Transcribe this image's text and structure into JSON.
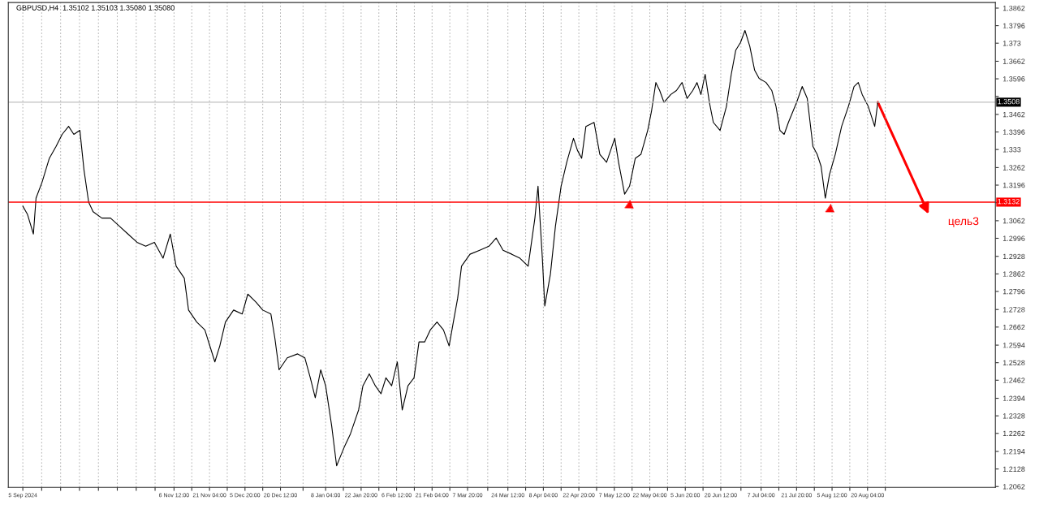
{
  "chart_data": {
    "type": "line",
    "title": "GBPUSD,H4  1.35102 1.35103 1.35080 1.35080",
    "x": [
      "2024-09-05T00:00",
      "2024-09-06T21:00",
      "2024-09-09T09:00",
      "2024-09-10T11:00",
      "2024-09-12T23:00",
      "2024-09-15T23:00",
      "2024-09-18T18:00",
      "2024-09-21T06:00",
      "2024-09-23T22:00",
      "2024-09-26T02:00",
      "2024-09-28T14:00",
      "2024-09-30T07:00",
      "2024-10-02T05:00",
      "2024-10-04T01:00",
      "2024-10-07T16:00",
      "2024-10-11T06:00",
      "2024-10-14T20:00",
      "2024-10-18T11:00",
      "2024-10-22T05:00",
      "2024-10-25T19:00",
      "2024-10-29T09:00",
      "2024-11-01T23:00",
      "2024-11-04T23:00",
      "2024-11-07T09:00",
      "2024-11-10T18:00",
      "2024-11-12T12:00",
      "2024-11-15T21:00",
      "2024-11-19T06:00",
      "2024-11-23T09:00",
      "2024-11-25T10:00",
      "2024-11-27T18:00",
      "2024-12-01T03:00",
      "2024-12-04T16:00",
      "2024-12-07T00:00",
      "2024-12-10T09:00",
      "2024-12-13T04:00",
      "2024-12-16T13:00",
      "2024-12-18T04:00",
      "2024-12-19T22:00",
      "2024-12-23T07:00",
      "2024-12-27T14:00",
      "2024-12-30T14:00",
      "2025-01-01T20:00",
      "2025-01-03T21:00",
      "2025-01-06T03:00",
      "2025-01-08T04:00",
      "2025-01-10T16:00",
      "2025-01-12T17:00",
      "2025-01-14T01:00",
      "2025-01-16T02:00",
      "2025-01-18T10:00",
      "2025-01-21T19:00",
      "2025-01-23T14:00",
      "2025-01-26T05:00",
      "2025-01-28T17:00",
      "2025-01-31T01:00",
      "2025-02-02T02:00",
      "2025-02-04T11:00",
      "2025-02-06T19:00",
      "2025-02-08T20:00",
      "2025-02-11T05:00",
      "2025-02-13T17:00",
      "2025-02-15T18:00",
      "2025-02-18T02:00",
      "2025-02-20T10:00",
      "2025-02-23T05:00",
      "2025-02-25T21:00",
      "2025-02-28T05:00",
      "2025-03-01T23:00",
      "2025-03-03T18:00",
      "2025-03-05T08:00",
      "2025-03-08T20:00",
      "2025-03-12T20:00",
      "2025-03-16T16:00",
      "2025-03-19T16:00",
      "2025-03-22T12:00",
      "2025-03-26T03:00",
      "2025-03-29T12:00",
      "2025-04-01T21:00",
      "2025-04-04T16:00",
      "2025-04-05T23:00",
      "2025-04-07T18:00",
      "2025-04-08T18:00",
      "2025-04-11T02:00",
      "2025-04-13T04:00",
      "2025-04-15T12:00",
      "2025-04-17T20:00",
      "2025-04-20T15:00",
      "2025-04-22T06:00",
      "2025-04-24T00:00",
      "2025-04-25T18:00",
      "2025-04-29T03:00",
      "2025-05-01T12:00",
      "2025-05-04T07:00",
      "2025-05-07T16:00",
      "2025-05-09T06:00",
      "2025-05-11T18:00",
      "2025-05-13T19:00",
      "2025-05-16T04:00",
      "2025-05-18T12:00",
      "2025-05-21T07:00",
      "2025-05-22T22:00",
      "2025-05-24T16:00",
      "2025-05-26T06:00",
      "2025-05-28T01:00",
      "2025-05-30T20:00",
      "2025-06-02T04:00",
      "2025-06-04T12:00",
      "2025-06-06T14:00",
      "2025-06-08T22:00",
      "2025-06-10T16:00",
      "2025-06-12T07:00",
      "2025-06-14T01:00",
      "2025-06-15T19:00",
      "2025-06-17T10:00",
      "2025-06-20T05:00",
      "2025-06-22T20:00",
      "2025-06-24T20:00",
      "2025-06-26T16:00",
      "2025-06-28T16:00",
      "2025-06-30T12:00",
      "2025-07-02T12:00",
      "2025-07-04T12:00",
      "2025-07-06T08:00",
      "2025-07-09T05:00",
      "2025-07-11T14:00",
      "2025-07-13T08:00",
      "2025-07-14T23:00",
      "2025-07-16T17:00",
      "2025-07-18T11:00",
      "2025-07-21T20:00",
      "2025-07-24T04:00",
      "2025-07-26T06:00",
      "2025-07-28T14:00",
      "2025-07-30T08:00",
      "2025-07-31T23:00",
      "2025-08-02T17:00",
      "2025-08-04T11:00",
      "2025-08-06T20:00",
      "2025-08-09T11:00",
      "2025-08-12T06:00",
      "2025-08-14T14:00",
      "2025-08-16T08:00",
      "2025-08-17T23:00",
      "2025-08-20T11:00",
      "2025-08-23T03:00",
      "2025-08-24T10:00"
    ],
    "series": [
      {
        "color": "#000000",
        "values": [
          1.3117,
          1.3087,
          1.3012,
          1.3147,
          1.3207,
          1.3297,
          1.3342,
          1.3387,
          1.3417,
          1.3387,
          1.3402,
          1.3252,
          1.3132,
          1.3096,
          1.3072,
          1.3072,
          1.3042,
          1.3012,
          1.2981,
          1.2966,
          1.2981,
          1.2921,
          1.3012,
          1.2891,
          1.2846,
          1.2726,
          1.2681,
          1.2651,
          1.2531,
          1.2591,
          1.2681,
          1.2726,
          1.2711,
          1.2786,
          1.2756,
          1.2726,
          1.2711,
          1.2621,
          1.2501,
          1.2546,
          1.2561,
          1.2546,
          1.2471,
          1.2396,
          1.2501,
          1.2441,
          1.229,
          1.214,
          1.217,
          1.2215,
          1.226,
          1.235,
          1.2441,
          1.2486,
          1.2441,
          1.2411,
          1.2471,
          1.2441,
          1.2531,
          1.235,
          1.2441,
          1.2471,
          1.2606,
          1.2606,
          1.2651,
          1.2681,
          1.2651,
          1.2591,
          1.2681,
          1.2771,
          1.2891,
          1.2936,
          1.2951,
          1.2966,
          1.2997,
          1.2951,
          1.2936,
          1.2921,
          1.2891,
          1.3072,
          1.3192,
          1.2921,
          1.2741,
          1.2861,
          1.3042,
          1.3192,
          1.3282,
          1.3372,
          1.3327,
          1.3297,
          1.3417,
          1.3432,
          1.3312,
          1.3282,
          1.3372,
          1.3282,
          1.3162,
          1.3192,
          1.3297,
          1.3312,
          1.3402,
          1.3477,
          1.3582,
          1.3552,
          1.3507,
          1.3537,
          1.3552,
          1.3582,
          1.3522,
          1.3552,
          1.3582,
          1.3537,
          1.3613,
          1.3507,
          1.3432,
          1.3402,
          1.3492,
          1.3613,
          1.3703,
          1.3733,
          1.3778,
          1.3718,
          1.3628,
          1.3598,
          1.3582,
          1.3552,
          1.3492,
          1.3402,
          1.3387,
          1.3432,
          1.3507,
          1.3567,
          1.3522,
          1.3342,
          1.3312,
          1.3267,
          1.3147,
          1.3237,
          1.3312,
          1.3417,
          1.3492,
          1.3567,
          1.3582,
          1.3537,
          1.3492,
          1.3417,
          1.3508
        ]
      }
    ],
    "xlim": [
      "2024-08-30T00:00",
      "2025-10-12T00:00"
    ],
    "xticks": [
      {
        "value": "2024-09-05T00:00",
        "label": "5 Sep 2024"
      },
      {
        "value": "2024-09-12T19:00",
        "label": null
      },
      {
        "value": "2024-09-20T15:00",
        "label": null
      },
      {
        "value": "2024-09-28T10:00",
        "label": null
      },
      {
        "value": "2024-10-06T06:00",
        "label": null
      },
      {
        "value": "2024-10-14T01:00",
        "label": null
      },
      {
        "value": "2024-10-21T21:00",
        "label": null
      },
      {
        "value": "2024-10-29T16:00",
        "label": null
      },
      {
        "value": "2024-11-06T12:00",
        "label": "6 Nov 12:00"
      },
      {
        "value": "2024-11-13T20:00",
        "label": null
      },
      {
        "value": "2024-11-21T04:00",
        "label": "21 Nov 04:00"
      },
      {
        "value": "2024-11-28T12:00",
        "label": null
      },
      {
        "value": "2024-12-05T20:00",
        "label": "5 Dec 20:00"
      },
      {
        "value": "2024-12-13T04:00",
        "label": null
      },
      {
        "value": "2024-12-20T12:00",
        "label": "20 Dec 12:00"
      },
      {
        "value": "2024-12-29T20:00",
        "label": null
      },
      {
        "value": "2025-01-08T04:00",
        "label": "8 Jan 04:00"
      },
      {
        "value": "2025-01-15T12:00",
        "label": null
      },
      {
        "value": "2025-01-22T20:00",
        "label": "22 Jan 20:00"
      },
      {
        "value": "2025-01-30T04:00",
        "label": null
      },
      {
        "value": "2025-02-06T12:00",
        "label": "6 Feb 12:00"
      },
      {
        "value": "2025-02-13T20:00",
        "label": null
      },
      {
        "value": "2025-02-21T04:00",
        "label": "21 Feb 04:00"
      },
      {
        "value": "2025-02-28T12:00",
        "label": null
      },
      {
        "value": "2025-03-07T20:00",
        "label": "7 Mar 20:00"
      },
      {
        "value": "2025-03-16T04:00",
        "label": null
      },
      {
        "value": "2025-03-24T12:00",
        "label": "24 Mar 12:00"
      },
      {
        "value": "2025-03-31T20:00",
        "label": null
      },
      {
        "value": "2025-04-08T04:00",
        "label": "8 Apr 04:00"
      },
      {
        "value": "2025-04-15T12:00",
        "label": null
      },
      {
        "value": "2025-04-22T20:00",
        "label": "22 Apr 20:00"
      },
      {
        "value": "2025-04-30T04:00",
        "label": null
      },
      {
        "value": "2025-05-07T12:00",
        "label": "7 May 12:00"
      },
      {
        "value": "2025-05-14T20:00",
        "label": null
      },
      {
        "value": "2025-05-22T04:00",
        "label": "22 May 04:00"
      },
      {
        "value": "2025-05-29T12:00",
        "label": null
      },
      {
        "value": "2025-06-05T20:00",
        "label": "5 Jun 20:00"
      },
      {
        "value": "2025-06-13T04:00",
        "label": null
      },
      {
        "value": "2025-06-20T12:00",
        "label": "20 Jun 12:00"
      },
      {
        "value": "2025-06-28T20:00",
        "label": null
      },
      {
        "value": "2025-07-07T04:00",
        "label": "7 Jul 04:00"
      },
      {
        "value": "2025-07-14T12:00",
        "label": null
      },
      {
        "value": "2025-07-21T20:00",
        "label": "21 Jul 20:00"
      },
      {
        "value": "2025-07-29T04:00",
        "label": null
      },
      {
        "value": "2025-08-05T12:00",
        "label": "5 Aug 12:00"
      },
      {
        "value": "2025-08-12T20:00",
        "label": null
      },
      {
        "value": "2025-08-20T04:00",
        "label": "20 Aug 04:00"
      },
      {
        "value": "2025-08-27T12:00",
        "label": null
      }
    ],
    "ylim": [
      1.2059,
      1.3883
    ],
    "yticks": [
      1.3862,
      1.3796,
      1.373,
      1.3662,
      1.3596,
      {
        "value": 1.353,
        "label": null
      },
      1.3462,
      1.3396,
      1.333,
      1.3262,
      1.3196,
      {
        "value": 1.313,
        "label": null
      },
      1.3062,
      1.2996,
      1.2928,
      1.2862,
      1.2796,
      1.2728,
      1.2662,
      1.2594,
      1.2528,
      1.2462,
      1.2394,
      1.2328,
      1.2262,
      1.2194,
      1.2128,
      1.2062
    ],
    "grid": "x",
    "line_style": "solid",
    "ref_lines": [
      {
        "axis": "y",
        "value": 1.3132,
        "label": "1.3132",
        "color": "#ff0000"
      },
      {
        "axis": "y",
        "value": 1.3508,
        "label": "1.3508",
        "color": "#c0c0c0"
      }
    ],
    "annotations": [
      "цель3"
    ]
  }
}
